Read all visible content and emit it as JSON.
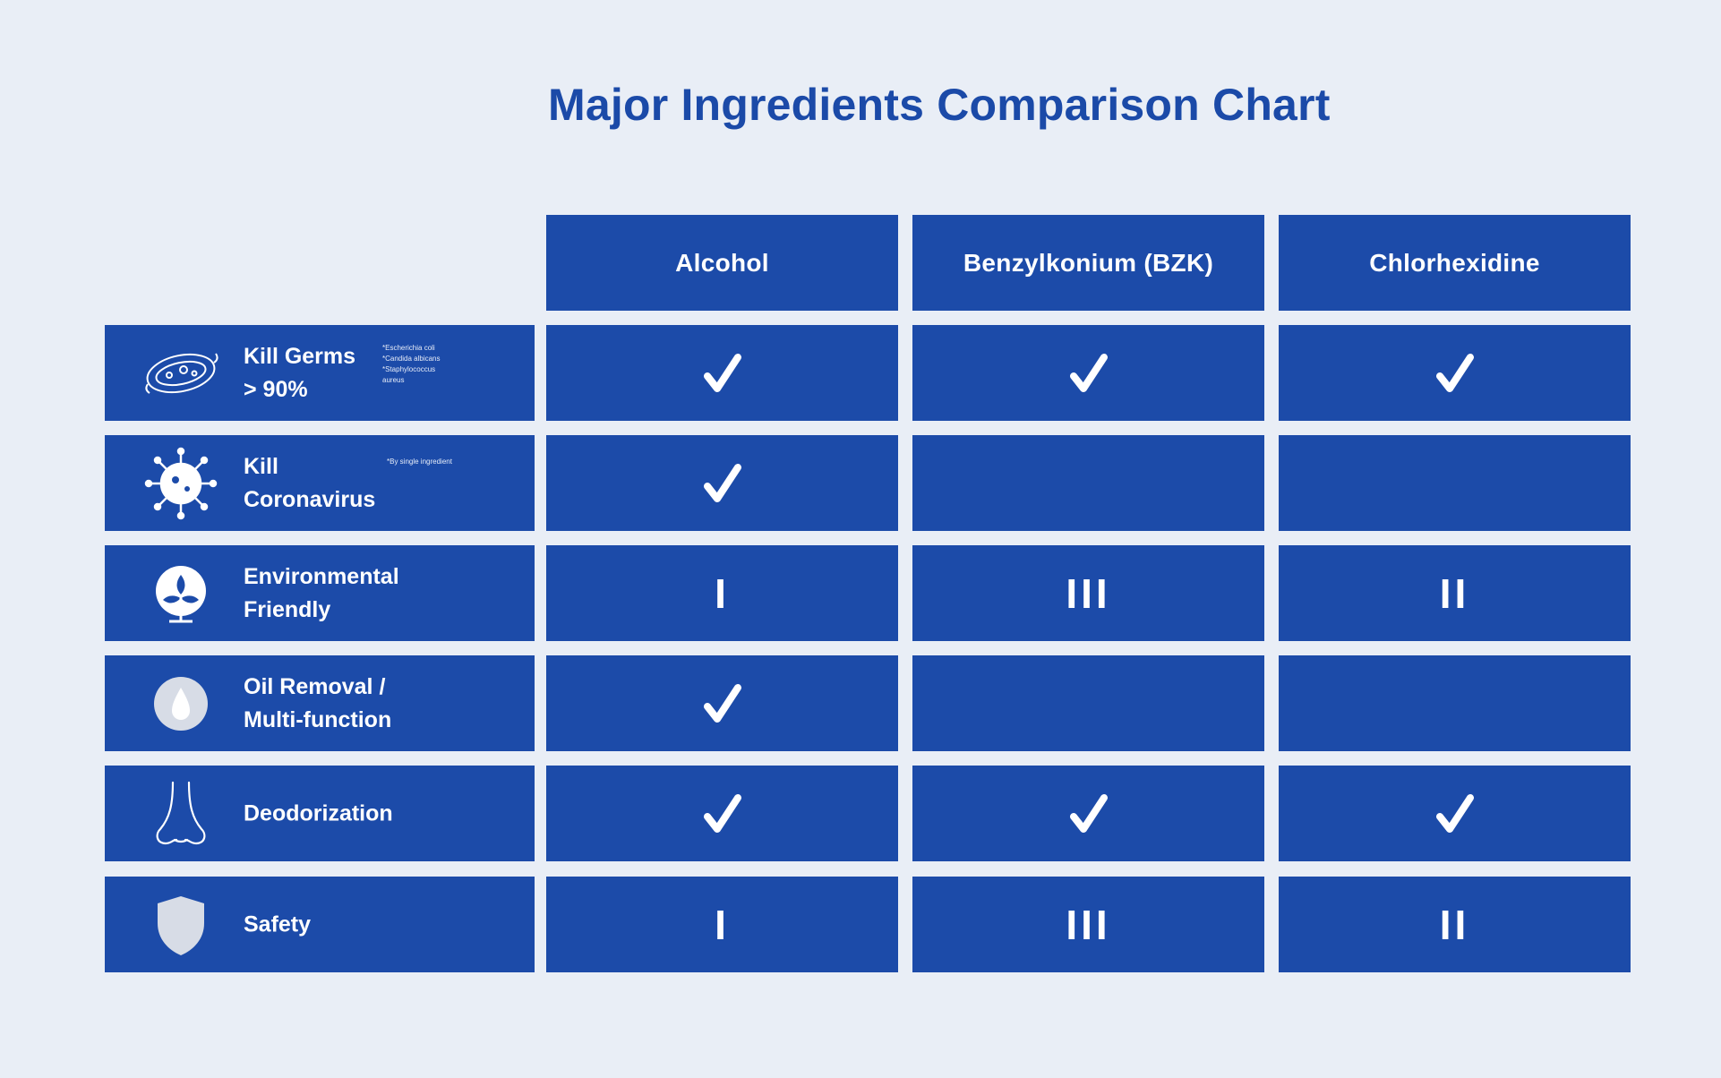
{
  "chart_data": {
    "type": "table",
    "title": "Major Ingredients Comparison Chart",
    "columns": [
      "Alcohol",
      "Benzylkonium (BZK)",
      "Chlorhexidine"
    ],
    "rows": [
      {
        "label_lines": [
          "Kill Germs",
          "> 90%"
        ],
        "note_lines": [
          "*Escherichia coli",
          "*Candida albicans",
          "*Staphylococcus",
          "aureus"
        ],
        "icon": "bacteria-icon",
        "values": [
          "✓",
          "✓",
          "✓"
        ]
      },
      {
        "label_lines": [
          "Kill",
          "Coronavirus"
        ],
        "note_lines": [
          "*By single ingredient"
        ],
        "icon": "virus-icon",
        "values": [
          "✓",
          "",
          ""
        ]
      },
      {
        "label_lines": [
          "Environmental",
          "Friendly"
        ],
        "note_lines": [],
        "icon": "eco-plant-icon",
        "values": [
          "I",
          "III",
          "II"
        ]
      },
      {
        "label_lines": [
          "Oil Removal /",
          "Multi-function"
        ],
        "note_lines": [],
        "icon": "oil-drop-icon",
        "values": [
          "✓",
          "",
          ""
        ]
      },
      {
        "label_lines": [
          "Deodorization"
        ],
        "note_lines": [],
        "icon": "nose-icon",
        "values": [
          "✓",
          "✓",
          "✓"
        ]
      },
      {
        "label_lines": [
          "Safety"
        ],
        "note_lines": [],
        "icon": "shield-icon",
        "values": [
          "I",
          "III",
          "II"
        ]
      }
    ]
  },
  "colors": {
    "background": "#e9eef6",
    "cell": "#1c4ba9",
    "title": "#1b4aa8",
    "text": "#ffffff"
  }
}
